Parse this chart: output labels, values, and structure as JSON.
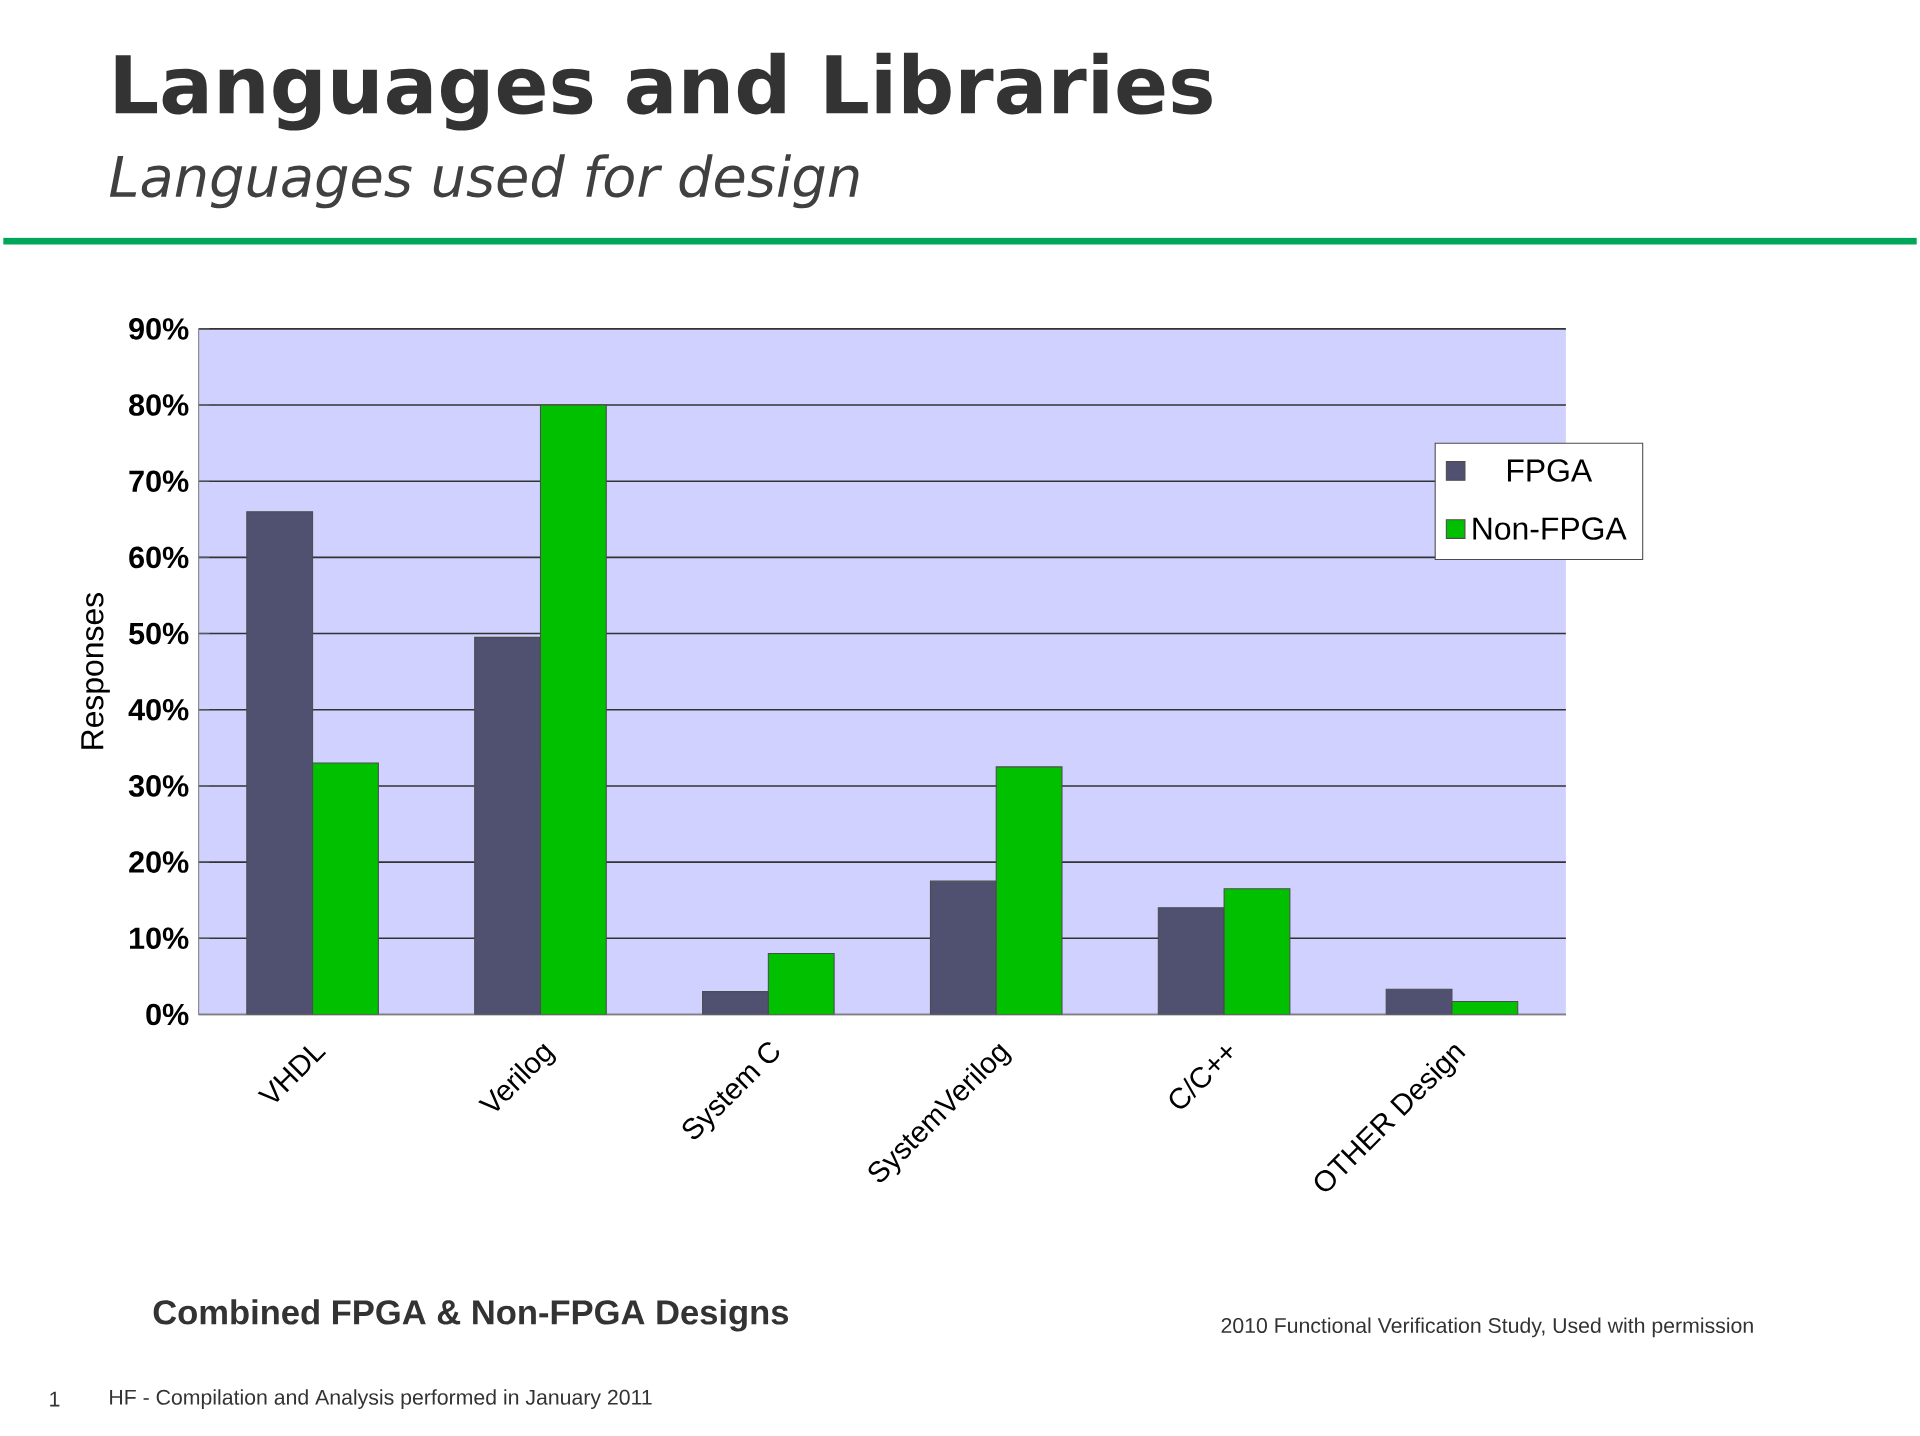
{
  "chart_data": {
    "type": "bar",
    "title": "Languages and Libraries",
    "subtitle": "Languages used for design",
    "ylabel": "Responses",
    "categories": [
      "VHDL",
      "Verilog",
      "System C",
      "SystemVerilog",
      "C/C++",
      "OTHER Design"
    ],
    "series": [
      {
        "name": "FPGA",
        "color": "#505070",
        "values": [
          66,
          49.5,
          3,
          17.5,
          14,
          3.3
        ]
      },
      {
        "name": "Non-FPGA",
        "color": "#00c000",
        "values": [
          33,
          80,
          8,
          32.5,
          16.5,
          1.7
        ]
      }
    ],
    "ylim": [
      0,
      90
    ],
    "yticks": [
      {
        "value": 0,
        "label": "0%"
      },
      {
        "value": 10,
        "label": "10%"
      },
      {
        "value": 20,
        "label": "20%"
      },
      {
        "value": 30,
        "label": "30%"
      },
      {
        "value": 40,
        "label": "40%"
      },
      {
        "value": 50,
        "label": "50%"
      },
      {
        "value": 60,
        "label": "60%"
      },
      {
        "value": 70,
        "label": "70%"
      },
      {
        "value": 80,
        "label": "80%"
      },
      {
        "value": 90,
        "label": "90%"
      }
    ],
    "grid": "y",
    "legend": "right",
    "annotations": [
      "Combined FPGA & Non-FPGA Designs",
      "2010 Functional Verification Study,  Used with permission",
      "HF - Compilation and Analysis performed in January 2011",
      "1"
    ]
  }
}
